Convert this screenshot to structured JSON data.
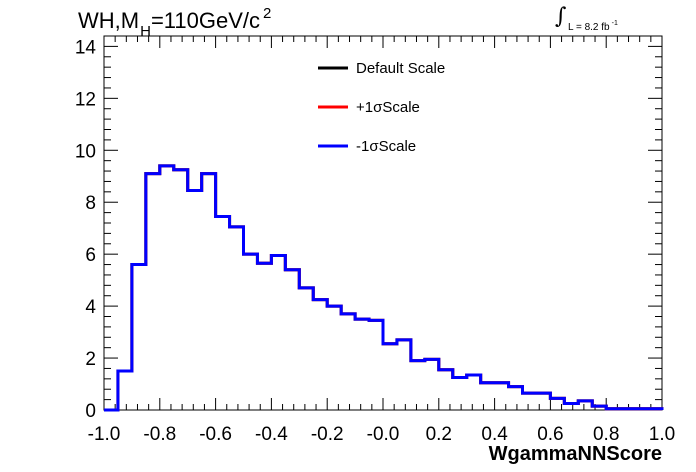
{
  "title": {
    "main": "WH,M",
    "sub": "H",
    "rest": "=110GeV/c",
    "sup": "2"
  },
  "lumi": {
    "integral": "∫",
    "label": "L = 8.2 fb",
    "sup": "-1"
  },
  "chart_data": {
    "type": "histogram",
    "xlabel": "WgammaNNScore",
    "xlim": [
      -1.0,
      1.0
    ],
    "ylim": [
      0,
      14.4
    ],
    "xticks": [
      "-1.0",
      "-0.8",
      "-0.6",
      "-0.4",
      "-0.2",
      "-0.0",
      "0.2",
      "0.4",
      "0.6",
      "0.8",
      "1.0"
    ],
    "yticks": [
      "0",
      "2",
      "4",
      "6",
      "8",
      "10",
      "12",
      "14"
    ],
    "bin_edges": [
      -1.0,
      -0.95,
      -0.9,
      -0.85,
      -0.8,
      -0.75,
      -0.7,
      -0.65,
      -0.6,
      -0.55,
      -0.5,
      -0.45,
      -0.4,
      -0.35,
      -0.3,
      -0.25,
      -0.2,
      -0.15,
      -0.1,
      -0.05,
      0.0,
      0.05,
      0.1,
      0.15,
      0.2,
      0.25,
      0.3,
      0.35,
      0.4,
      0.45,
      0.5,
      0.55,
      0.6,
      0.65,
      0.7,
      0.75,
      0.8,
      0.85,
      0.9,
      0.95,
      1.0
    ],
    "series": [
      {
        "name": "Default Scale",
        "color": "#000000",
        "values": [
          0,
          1.5,
          5.6,
          9.1,
          9.4,
          9.25,
          8.45,
          9.1,
          7.45,
          7.05,
          6.0,
          5.65,
          5.95,
          5.4,
          4.7,
          4.25,
          4.0,
          3.7,
          3.5,
          3.45,
          2.55,
          2.7,
          1.9,
          1.95,
          1.55,
          1.25,
          1.35,
          1.05,
          1.05,
          0.9,
          0.65,
          0.65,
          0.45,
          0.25,
          0.35,
          0.15,
          0.05,
          0.05,
          0.05,
          0.05
        ]
      },
      {
        "name": "+1σScale",
        "color": "#ff0000",
        "values": [
          0,
          1.5,
          5.6,
          9.1,
          9.4,
          9.25,
          8.45,
          9.1,
          7.45,
          7.05,
          6.0,
          5.65,
          5.95,
          5.4,
          4.7,
          4.25,
          4.0,
          3.7,
          3.5,
          3.45,
          2.55,
          2.7,
          1.9,
          1.95,
          1.55,
          1.25,
          1.35,
          1.05,
          1.05,
          0.9,
          0.65,
          0.65,
          0.45,
          0.25,
          0.35,
          0.15,
          0.05,
          0.05,
          0.05,
          0.05
        ]
      },
      {
        "name": "-1σScale",
        "color": "#0000ff",
        "values": [
          0,
          1.5,
          5.6,
          9.1,
          9.4,
          9.25,
          8.45,
          9.1,
          7.45,
          7.05,
          6.0,
          5.65,
          5.95,
          5.4,
          4.7,
          4.25,
          4.0,
          3.7,
          3.5,
          3.45,
          2.55,
          2.7,
          1.9,
          1.95,
          1.55,
          1.25,
          1.35,
          1.05,
          1.05,
          0.9,
          0.65,
          0.65,
          0.45,
          0.25,
          0.35,
          0.15,
          0.05,
          0.05,
          0.05,
          0.05
        ]
      }
    ],
    "grid": false,
    "legend": "top-center"
  }
}
